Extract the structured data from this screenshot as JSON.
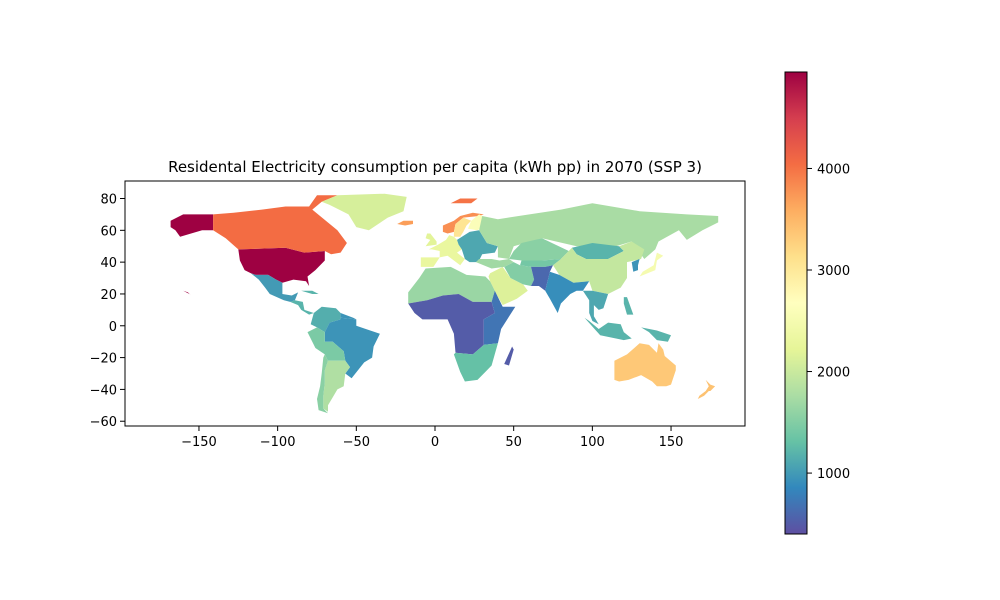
{
  "chart_data": {
    "type": "choropleth",
    "title": "Residental Electricity consumption per capita (kWh pp) in 2070 (SSP 3)",
    "xlabel": "",
    "ylabel": "",
    "xlim": [
      -197,
      197
    ],
    "ylim": [
      -63,
      91
    ],
    "x_ticks": [
      -150,
      -100,
      -50,
      0,
      50,
      100,
      150
    ],
    "x_tick_labels": [
      "−150",
      "−100",
      "−50",
      "0",
      "50",
      "100",
      "150"
    ],
    "y_ticks": [
      -60,
      -40,
      -20,
      0,
      20,
      40,
      60,
      80
    ],
    "y_tick_labels": [
      "−60",
      "−40",
      "−20",
      "0",
      "20",
      "40",
      "60",
      "80"
    ],
    "grid": false,
    "colormap": "Spectral_r",
    "colorbar": {
      "range": [
        400,
        4950
      ],
      "ticks": [
        1000,
        2000,
        3000,
        4000
      ],
      "tick_labels": [
        "1000",
        "2000",
        "3000",
        "4000"
      ]
    },
    "regions": [
      {
        "name": "United States",
        "value": 4950
      },
      {
        "name": "Alaska",
        "value": 4950
      },
      {
        "name": "Canada",
        "value": 4050
      },
      {
        "name": "Greenland",
        "value": 2100
      },
      {
        "name": "Iceland",
        "value": 3700
      },
      {
        "name": "Svalbard",
        "value": 4000
      },
      {
        "name": "Norway",
        "value": 3800
      },
      {
        "name": "Sweden",
        "value": 3050
      },
      {
        "name": "Finland",
        "value": 2600
      },
      {
        "name": "Western Europe",
        "value": 2300
      },
      {
        "name": "United Kingdom",
        "value": 2200
      },
      {
        "name": "Eastern Europe",
        "value": 1100
      },
      {
        "name": "Russia",
        "value": 1750
      },
      {
        "name": "Kazakhstan",
        "value": 1550
      },
      {
        "name": "Mongolia",
        "value": 1200
      },
      {
        "name": "China",
        "value": 1950
      },
      {
        "name": "Japan",
        "value": 2500
      },
      {
        "name": "Korea",
        "value": 950
      },
      {
        "name": "Middle East",
        "value": 2150
      },
      {
        "name": "Turkey and Caucasus",
        "value": 1700
      },
      {
        "name": "Iran",
        "value": 1500
      },
      {
        "name": "Central Asia",
        "value": 1400
      },
      {
        "name": "North Africa",
        "value": 1650
      },
      {
        "name": "Sub-Saharan Africa",
        "value": 500
      },
      {
        "name": "East Africa",
        "value": 700
      },
      {
        "name": "Southern Africa",
        "value": 1300
      },
      {
        "name": "South Asia",
        "value": 900
      },
      {
        "name": "Pakistan and Afghanistan",
        "value": 600
      },
      {
        "name": "Southeast Asia",
        "value": 1100
      },
      {
        "name": "Indonesia",
        "value": 1200
      },
      {
        "name": "Australia",
        "value": 3350
      },
      {
        "name": "New Zealand",
        "value": 3400
      },
      {
        "name": "Mexico",
        "value": 1000
      },
      {
        "name": "Central America",
        "value": 1200
      },
      {
        "name": "Colombia and Venezuela",
        "value": 1150
      },
      {
        "name": "Brazil",
        "value": 950
      },
      {
        "name": "Peru and Bolivia",
        "value": 1450
      },
      {
        "name": "Argentina",
        "value": 1800
      },
      {
        "name": "Chile",
        "value": 1550
      },
      {
        "name": "Hawaii",
        "value": 4950
      }
    ]
  }
}
